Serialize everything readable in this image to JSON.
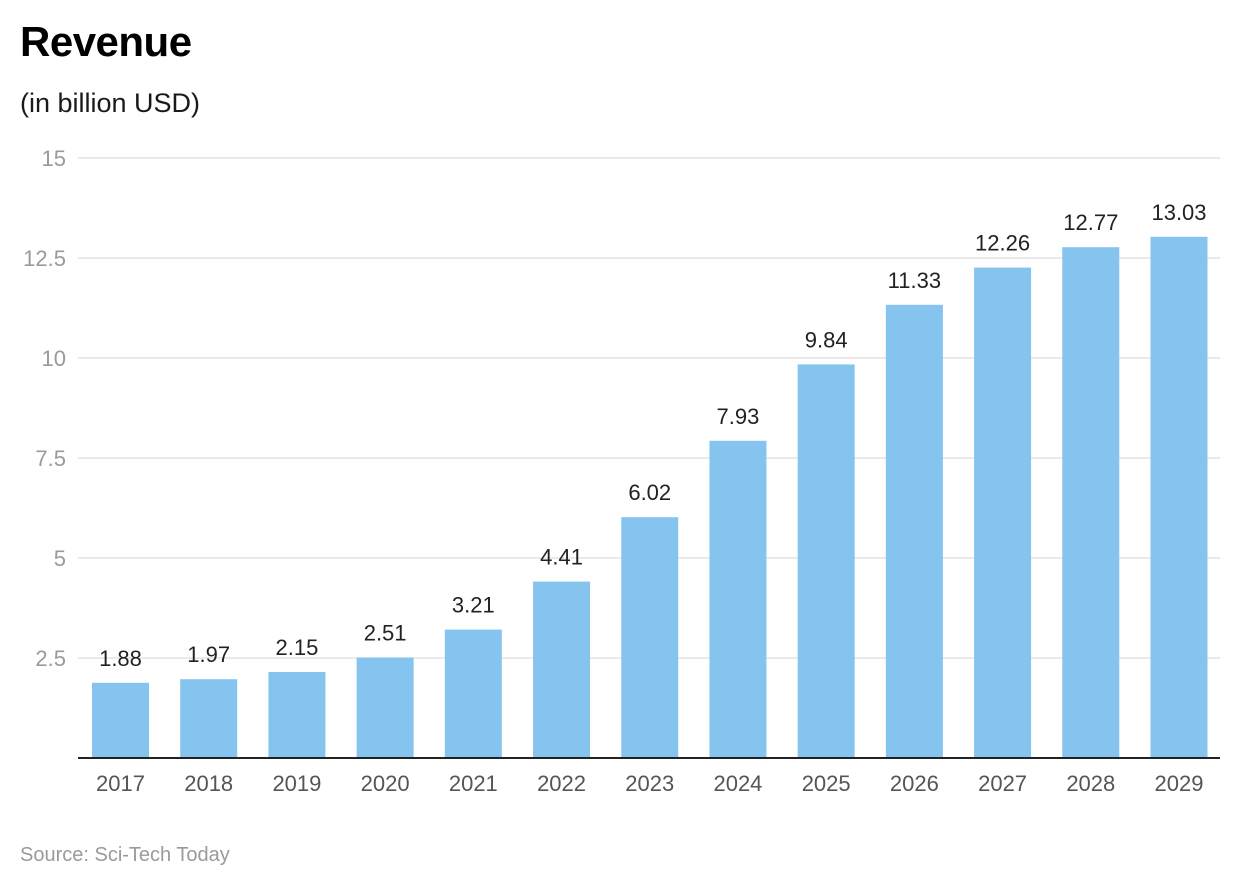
{
  "title": "Revenue",
  "subtitle": "(in billion USD)",
  "source": "Source: Sci-Tech Today",
  "chart_data": {
    "type": "bar",
    "title": "Revenue",
    "subtitle": "(in billion USD)",
    "xlabel": "",
    "ylabel": "",
    "categories": [
      "2017",
      "2018",
      "2019",
      "2020",
      "2021",
      "2022",
      "2023",
      "2024",
      "2025",
      "2026",
      "2027",
      "2028",
      "2029"
    ],
    "values": [
      1.88,
      1.97,
      2.15,
      2.51,
      3.21,
      4.41,
      6.02,
      7.93,
      9.84,
      11.33,
      12.26,
      12.77,
      13.03
    ],
    "data_labels": [
      "1.88",
      "1.97",
      "2.15",
      "2.51",
      "3.21",
      "4.41",
      "6.02",
      "7.93",
      "9.84",
      "11.33",
      "12.26",
      "12.77",
      "13.03"
    ],
    "ylim": [
      0,
      15
    ],
    "yticks": [
      2.5,
      5,
      7.5,
      10,
      12.5,
      15
    ],
    "ytick_labels": [
      "2.5",
      "5",
      "7.5",
      "10",
      "12.5",
      "15"
    ],
    "grid": true,
    "legend": "none",
    "bar_color": "#85c4ee",
    "gridline_color": "#e3e3e3",
    "axis_color": "#222222"
  }
}
